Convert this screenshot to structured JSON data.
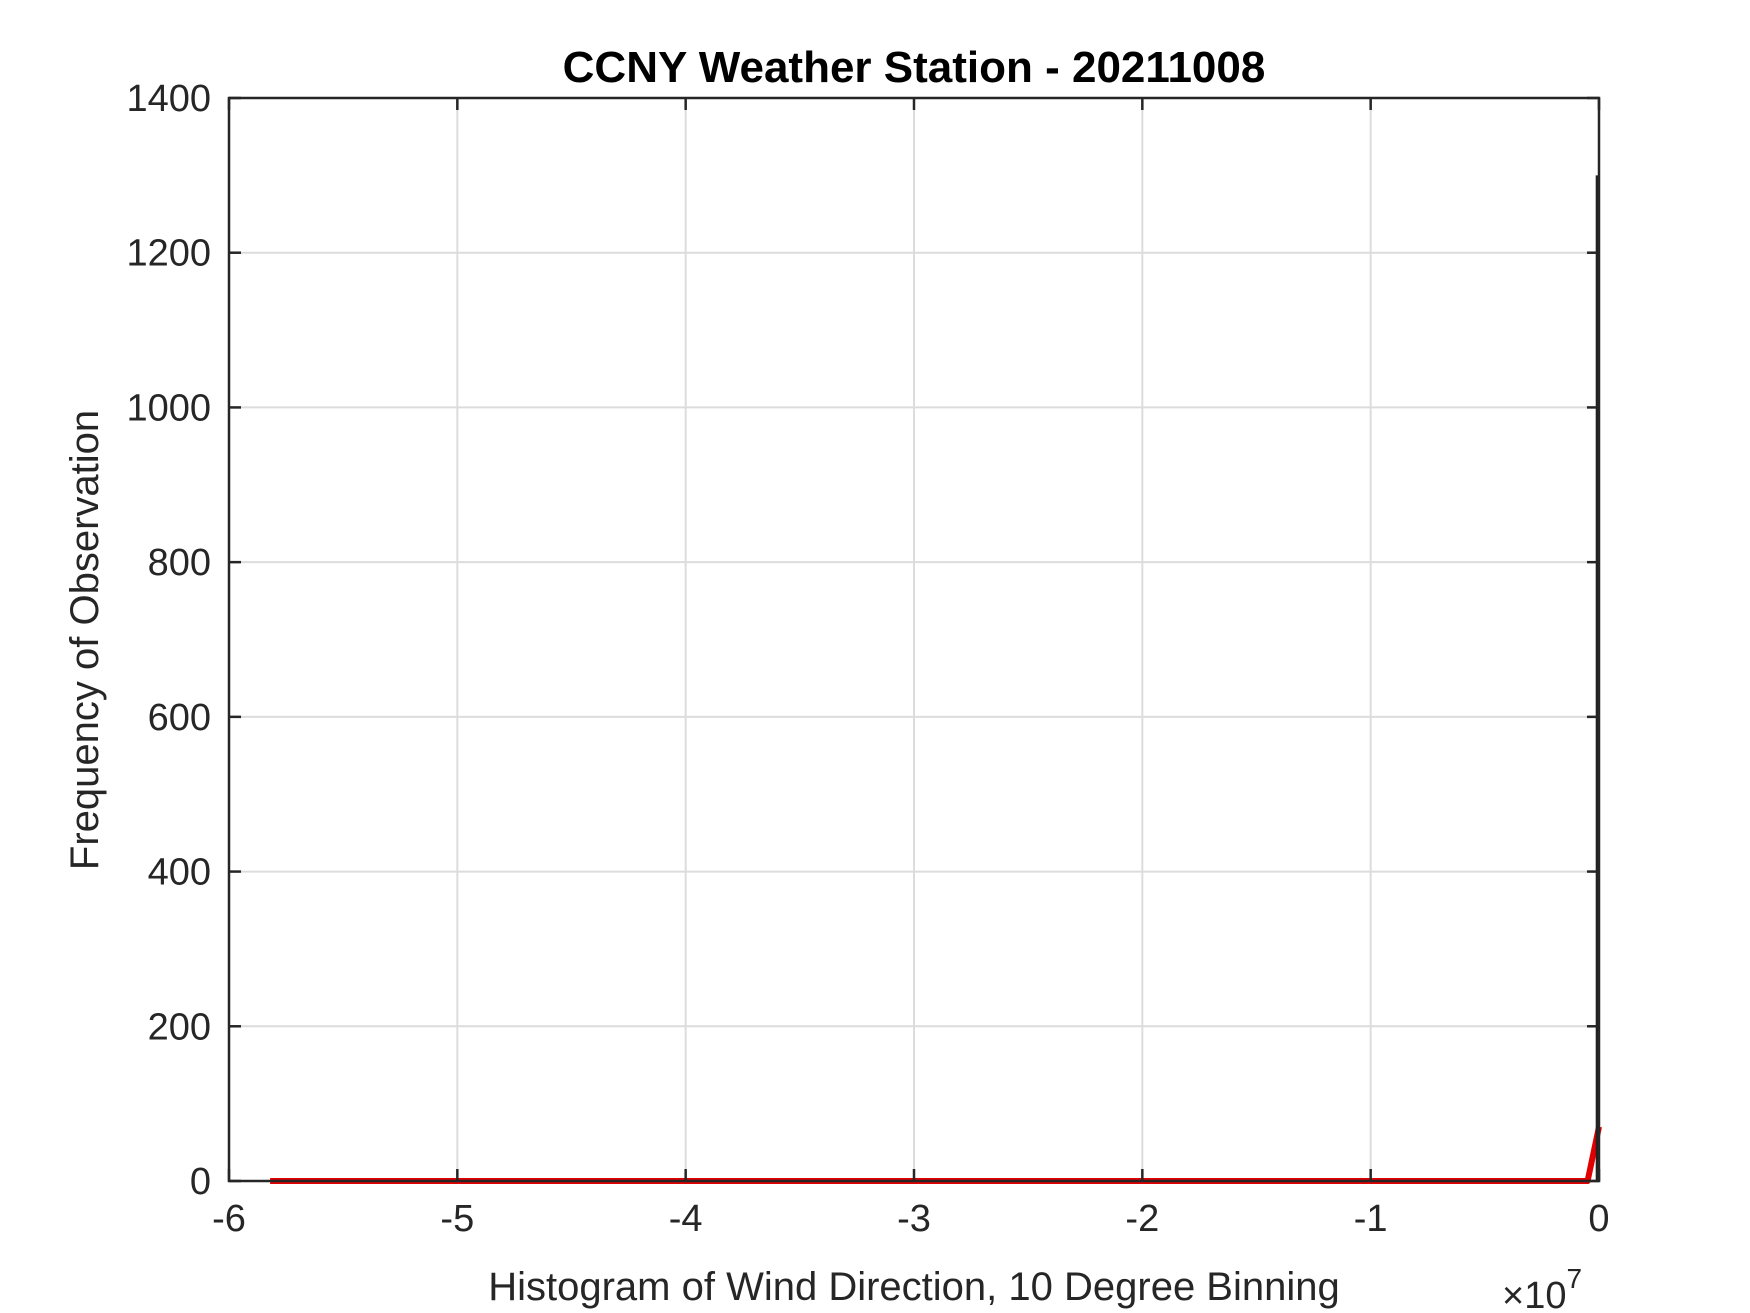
{
  "chart_data": {
    "type": "line",
    "title": "CCNY Weather Station - 20211008",
    "xlabel": "Histogram of Wind Direction, 10 Degree Binning",
    "ylabel": "Frequency of Observation",
    "x_exponent_label": "×10",
    "x_exponent": "7",
    "xlim": [
      -6,
      0
    ],
    "ylim": [
      0,
      1400
    ],
    "x_scale_factor": 10000000,
    "x_ticks": [
      "-6",
      "-5",
      "-4",
      "-3",
      "-2",
      "-1",
      "0"
    ],
    "y_ticks": [
      "0",
      "200",
      "400",
      "600",
      "800",
      "1000",
      "1200",
      "1400"
    ],
    "grid": true,
    "series": [
      {
        "color": "#e00000",
        "x": [
          -5.82,
          -0.05,
          0.0
        ],
        "y": [
          0,
          0,
          70
        ]
      },
      {
        "color": "#222222",
        "x": [
          -0.008,
          -0.008
        ],
        "y": [
          0,
          1300
        ]
      }
    ]
  }
}
